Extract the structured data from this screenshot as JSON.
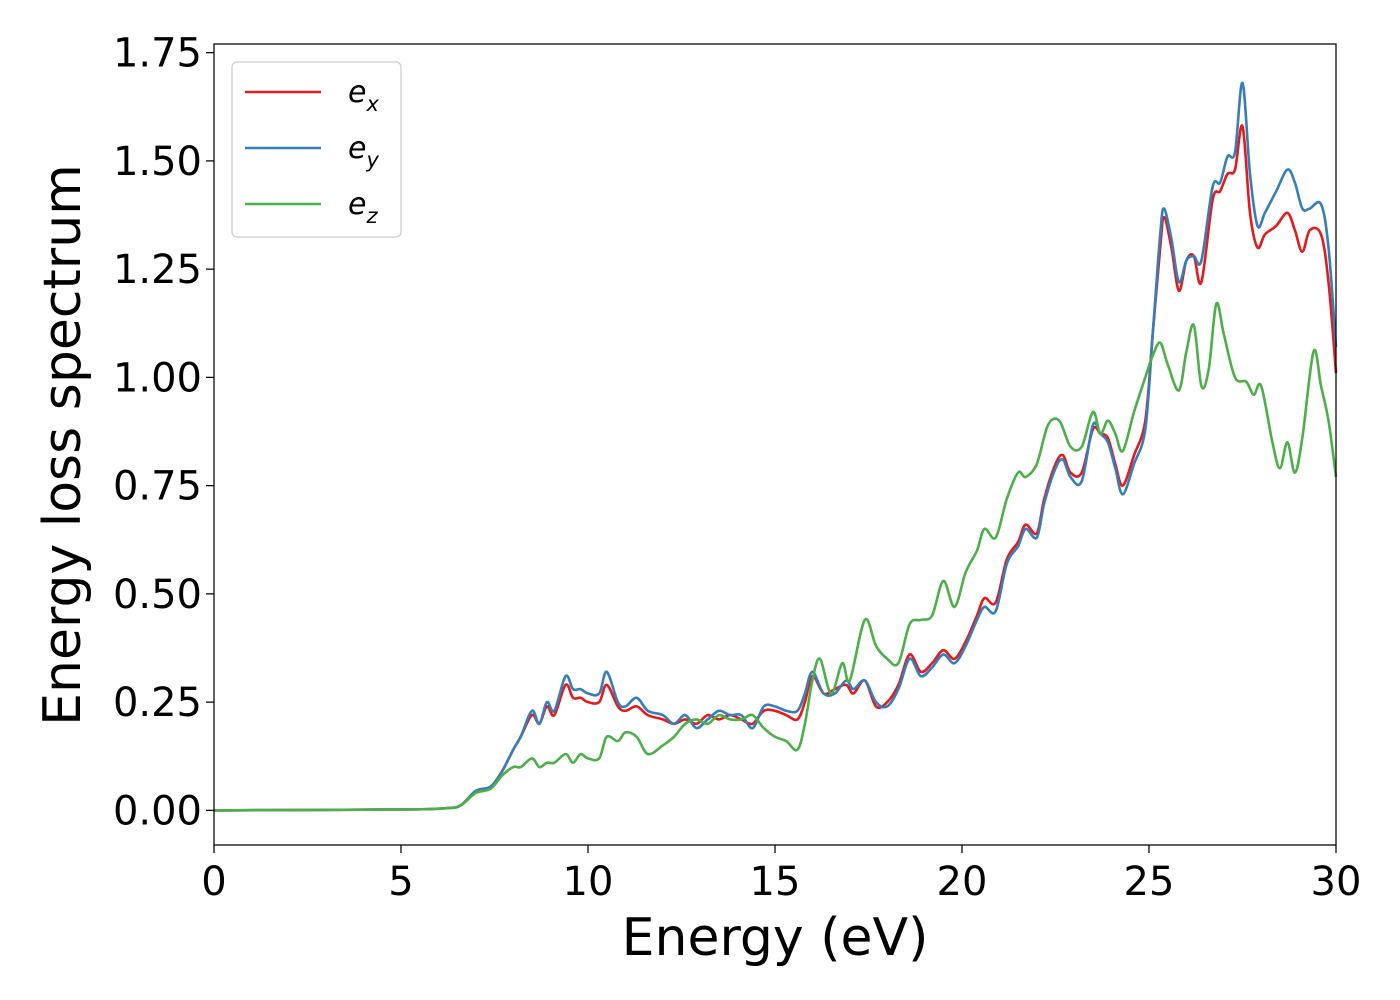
{
  "chart_data": {
    "type": "line",
    "xlabel": "Energy (eV)",
    "ylabel": "Energy loss spectrum",
    "xlim": [
      0,
      30
    ],
    "ylim": [
      -0.08,
      1.77
    ],
    "xticks": [
      "0",
      "5",
      "10",
      "15",
      "20",
      "25",
      "30"
    ],
    "yticks": [
      "0.00",
      "0.25",
      "0.50",
      "0.75",
      "1.00",
      "1.25",
      "1.50",
      "1.75"
    ],
    "grid": false,
    "legend_position": "top-left",
    "series": [
      {
        "name": "e",
        "subscript": "x",
        "color": "#e41a1c",
        "points": [
          [
            0,
            0
          ],
          [
            5,
            0.002
          ],
          [
            6.2,
            0.005
          ],
          [
            6.6,
            0.012
          ],
          [
            7,
            0.045
          ],
          [
            7.4,
            0.055
          ],
          [
            7.7,
            0.09
          ],
          [
            8,
            0.14
          ],
          [
            8.2,
            0.17
          ],
          [
            8.5,
            0.22
          ],
          [
            8.7,
            0.2
          ],
          [
            8.9,
            0.24
          ],
          [
            9.1,
            0.22
          ],
          [
            9.4,
            0.29
          ],
          [
            9.6,
            0.26
          ],
          [
            9.8,
            0.26
          ],
          [
            10,
            0.25
          ],
          [
            10.3,
            0.25
          ],
          [
            10.5,
            0.29
          ],
          [
            10.8,
            0.24
          ],
          [
            11,
            0.23
          ],
          [
            11.3,
            0.24
          ],
          [
            11.6,
            0.22
          ],
          [
            12,
            0.21
          ],
          [
            12.3,
            0.2
          ],
          [
            12.6,
            0.21
          ],
          [
            12.9,
            0.2
          ],
          [
            13.2,
            0.22
          ],
          [
            13.5,
            0.21
          ],
          [
            13.8,
            0.22
          ],
          [
            14.1,
            0.21
          ],
          [
            14.4,
            0.2
          ],
          [
            14.7,
            0.23
          ],
          [
            15,
            0.23
          ],
          [
            15.3,
            0.22
          ],
          [
            15.6,
            0.21
          ],
          [
            15.8,
            0.25
          ],
          [
            16,
            0.31
          ],
          [
            16.3,
            0.27
          ],
          [
            16.6,
            0.28
          ],
          [
            16.9,
            0.29
          ],
          [
            17.1,
            0.27
          ],
          [
            17.4,
            0.3
          ],
          [
            17.7,
            0.24
          ],
          [
            18,
            0.25
          ],
          [
            18.3,
            0.29
          ],
          [
            18.6,
            0.36
          ],
          [
            18.9,
            0.32
          ],
          [
            19.2,
            0.34
          ],
          [
            19.5,
            0.37
          ],
          [
            19.8,
            0.35
          ],
          [
            20.1,
            0.39
          ],
          [
            20.4,
            0.45
          ],
          [
            20.6,
            0.49
          ],
          [
            20.9,
            0.48
          ],
          [
            21.2,
            0.58
          ],
          [
            21.5,
            0.62
          ],
          [
            21.7,
            0.66
          ],
          [
            22,
            0.64
          ],
          [
            22.2,
            0.72
          ],
          [
            22.5,
            0.8
          ],
          [
            22.7,
            0.82
          ],
          [
            22.9,
            0.78
          ],
          [
            23.2,
            0.78
          ],
          [
            23.5,
            0.88
          ],
          [
            23.7,
            0.87
          ],
          [
            23.9,
            0.86
          ],
          [
            24.1,
            0.8
          ],
          [
            24.3,
            0.75
          ],
          [
            24.6,
            0.82
          ],
          [
            24.9,
            0.9
          ],
          [
            25.1,
            1.1
          ],
          [
            25.3,
            1.3
          ],
          [
            25.4,
            1.37
          ],
          [
            25.6,
            1.3
          ],
          [
            25.8,
            1.2
          ],
          [
            26,
            1.27
          ],
          [
            26.2,
            1.28
          ],
          [
            26.4,
            1.22
          ],
          [
            26.7,
            1.41
          ],
          [
            26.9,
            1.43
          ],
          [
            27.1,
            1.47
          ],
          [
            27.3,
            1.48
          ],
          [
            27.5,
            1.58
          ],
          [
            27.7,
            1.38
          ],
          [
            27.9,
            1.3
          ],
          [
            28.1,
            1.33
          ],
          [
            28.4,
            1.35
          ],
          [
            28.7,
            1.38
          ],
          [
            28.9,
            1.34
          ],
          [
            29.1,
            1.29
          ],
          [
            29.3,
            1.34
          ],
          [
            29.6,
            1.33
          ],
          [
            29.8,
            1.22
          ],
          [
            30,
            1.01
          ]
        ]
      },
      {
        "name": "e",
        "subscript": "y",
        "color": "#377eb8",
        "points": [
          [
            0,
            0
          ],
          [
            5,
            0.002
          ],
          [
            6.2,
            0.005
          ],
          [
            6.6,
            0.012
          ],
          [
            7,
            0.045
          ],
          [
            7.4,
            0.055
          ],
          [
            7.7,
            0.09
          ],
          [
            8,
            0.14
          ],
          [
            8.2,
            0.17
          ],
          [
            8.5,
            0.23
          ],
          [
            8.7,
            0.2
          ],
          [
            8.9,
            0.25
          ],
          [
            9.1,
            0.23
          ],
          [
            9.4,
            0.31
          ],
          [
            9.6,
            0.28
          ],
          [
            9.8,
            0.28
          ],
          [
            10,
            0.27
          ],
          [
            10.3,
            0.27
          ],
          [
            10.5,
            0.32
          ],
          [
            10.8,
            0.25
          ],
          [
            11,
            0.24
          ],
          [
            11.3,
            0.26
          ],
          [
            11.6,
            0.23
          ],
          [
            12,
            0.22
          ],
          [
            12.3,
            0.2
          ],
          [
            12.6,
            0.22
          ],
          [
            12.9,
            0.19
          ],
          [
            13.2,
            0.21
          ],
          [
            13.5,
            0.23
          ],
          [
            13.8,
            0.22
          ],
          [
            14.1,
            0.22
          ],
          [
            14.4,
            0.19
          ],
          [
            14.7,
            0.24
          ],
          [
            15,
            0.24
          ],
          [
            15.3,
            0.23
          ],
          [
            15.6,
            0.23
          ],
          [
            15.8,
            0.27
          ],
          [
            16,
            0.32
          ],
          [
            16.3,
            0.27
          ],
          [
            16.6,
            0.27
          ],
          [
            16.9,
            0.3
          ],
          [
            17.1,
            0.28
          ],
          [
            17.4,
            0.3
          ],
          [
            17.7,
            0.25
          ],
          [
            18,
            0.24
          ],
          [
            18.3,
            0.28
          ],
          [
            18.6,
            0.35
          ],
          [
            18.9,
            0.31
          ],
          [
            19.2,
            0.33
          ],
          [
            19.5,
            0.36
          ],
          [
            19.8,
            0.34
          ],
          [
            20.1,
            0.38
          ],
          [
            20.4,
            0.44
          ],
          [
            20.6,
            0.47
          ],
          [
            20.9,
            0.46
          ],
          [
            21.2,
            0.57
          ],
          [
            21.5,
            0.61
          ],
          [
            21.7,
            0.65
          ],
          [
            22,
            0.63
          ],
          [
            22.2,
            0.71
          ],
          [
            22.5,
            0.79
          ],
          [
            22.7,
            0.81
          ],
          [
            22.9,
            0.77
          ],
          [
            23.2,
            0.76
          ],
          [
            23.5,
            0.89
          ],
          [
            23.7,
            0.87
          ],
          [
            23.9,
            0.85
          ],
          [
            24.1,
            0.79
          ],
          [
            24.3,
            0.73
          ],
          [
            24.6,
            0.8
          ],
          [
            24.9,
            0.88
          ],
          [
            25.1,
            1.1
          ],
          [
            25.3,
            1.33
          ],
          [
            25.4,
            1.39
          ],
          [
            25.6,
            1.32
          ],
          [
            25.8,
            1.22
          ],
          [
            26,
            1.27
          ],
          [
            26.2,
            1.28
          ],
          [
            26.4,
            1.27
          ],
          [
            26.7,
            1.44
          ],
          [
            26.9,
            1.45
          ],
          [
            27.1,
            1.51
          ],
          [
            27.3,
            1.52
          ],
          [
            27.5,
            1.68
          ],
          [
            27.7,
            1.47
          ],
          [
            27.9,
            1.35
          ],
          [
            28.1,
            1.38
          ],
          [
            28.4,
            1.43
          ],
          [
            28.7,
            1.48
          ],
          [
            28.9,
            1.45
          ],
          [
            29.1,
            1.39
          ],
          [
            29.3,
            1.39
          ],
          [
            29.6,
            1.4
          ],
          [
            29.8,
            1.3
          ],
          [
            30,
            1.07
          ]
        ]
      },
      {
        "name": "e",
        "subscript": "z",
        "color": "#4daf4a",
        "points": [
          [
            0,
            0
          ],
          [
            5,
            0.002
          ],
          [
            6.2,
            0.005
          ],
          [
            6.6,
            0.012
          ],
          [
            7,
            0.04
          ],
          [
            7.4,
            0.05
          ],
          [
            7.7,
            0.08
          ],
          [
            8,
            0.1
          ],
          [
            8.2,
            0.1
          ],
          [
            8.5,
            0.12
          ],
          [
            8.7,
            0.1
          ],
          [
            8.9,
            0.11
          ],
          [
            9.1,
            0.11
          ],
          [
            9.4,
            0.13
          ],
          [
            9.6,
            0.11
          ],
          [
            9.8,
            0.13
          ],
          [
            10,
            0.12
          ],
          [
            10.3,
            0.12
          ],
          [
            10.5,
            0.17
          ],
          [
            10.8,
            0.16
          ],
          [
            11,
            0.18
          ],
          [
            11.3,
            0.17
          ],
          [
            11.6,
            0.13
          ],
          [
            12,
            0.15
          ],
          [
            12.3,
            0.17
          ],
          [
            12.6,
            0.2
          ],
          [
            12.9,
            0.21
          ],
          [
            13.2,
            0.2
          ],
          [
            13.5,
            0.22
          ],
          [
            13.8,
            0.21
          ],
          [
            14.1,
            0.21
          ],
          [
            14.4,
            0.22
          ],
          [
            14.7,
            0.19
          ],
          [
            15,
            0.17
          ],
          [
            15.3,
            0.16
          ],
          [
            15.6,
            0.14
          ],
          [
            15.8,
            0.2
          ],
          [
            16,
            0.3
          ],
          [
            16.2,
            0.35
          ],
          [
            16.5,
            0.27
          ],
          [
            16.8,
            0.34
          ],
          [
            17,
            0.3
          ],
          [
            17.4,
            0.44
          ],
          [
            17.7,
            0.38
          ],
          [
            18,
            0.35
          ],
          [
            18.3,
            0.34
          ],
          [
            18.6,
            0.43
          ],
          [
            18.9,
            0.44
          ],
          [
            19.2,
            0.45
          ],
          [
            19.5,
            0.53
          ],
          [
            19.8,
            0.47
          ],
          [
            20.1,
            0.55
          ],
          [
            20.4,
            0.6
          ],
          [
            20.6,
            0.65
          ],
          [
            20.9,
            0.63
          ],
          [
            21.2,
            0.72
          ],
          [
            21.5,
            0.78
          ],
          [
            21.7,
            0.77
          ],
          [
            22,
            0.8
          ],
          [
            22.3,
            0.89
          ],
          [
            22.6,
            0.9
          ],
          [
            22.9,
            0.84
          ],
          [
            23.2,
            0.84
          ],
          [
            23.5,
            0.92
          ],
          [
            23.7,
            0.87
          ],
          [
            23.9,
            0.9
          ],
          [
            24.1,
            0.87
          ],
          [
            24.3,
            0.83
          ],
          [
            24.6,
            0.92
          ],
          [
            24.9,
            1.0
          ],
          [
            25.1,
            1.05
          ],
          [
            25.3,
            1.08
          ],
          [
            25.5,
            1.03
          ],
          [
            25.8,
            0.97
          ],
          [
            26,
            1.06
          ],
          [
            26.2,
            1.12
          ],
          [
            26.4,
            0.98
          ],
          [
            26.6,
            1.02
          ],
          [
            26.8,
            1.17
          ],
          [
            27,
            1.1
          ],
          [
            27.3,
            1.0
          ],
          [
            27.6,
            0.99
          ],
          [
            27.8,
            0.96
          ],
          [
            28,
            0.98
          ],
          [
            28.3,
            0.85
          ],
          [
            28.5,
            0.79
          ],
          [
            28.7,
            0.85
          ],
          [
            28.9,
            0.78
          ],
          [
            29.1,
            0.86
          ],
          [
            29.4,
            1.06
          ],
          [
            29.6,
            0.98
          ],
          [
            29.8,
            0.9
          ],
          [
            30,
            0.77
          ]
        ]
      }
    ]
  }
}
